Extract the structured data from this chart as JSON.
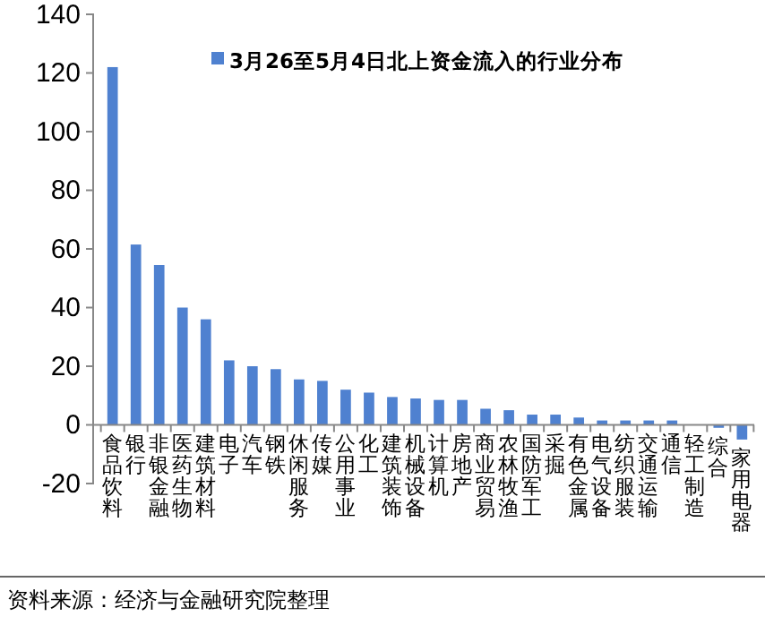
{
  "chart_data": {
    "type": "bar",
    "categories": [
      "食品饮料",
      "银行",
      "非银金融",
      "医药生物",
      "建筑材料",
      "电子",
      "汽车",
      "钢铁",
      "休闲服务",
      "传媒",
      "公用事业",
      "化工",
      "建筑装饰",
      "机械设备",
      "计算机",
      "房地产",
      "商业贸易",
      "农林牧渔",
      "国防军工",
      "采掘",
      "有色金属",
      "电气设备",
      "纺织服装",
      "交通运输",
      "通信",
      "轻工制造",
      "综合",
      "家用电器"
    ],
    "series": [
      {
        "name": "3月26至5月4日北上资金流入的行业分布",
        "color": "#4f81d0",
        "values": [
          122,
          61.5,
          54.5,
          40,
          36,
          22,
          20,
          19,
          15.5,
          15,
          12,
          11,
          9.5,
          9,
          8.5,
          8.5,
          5.5,
          5,
          3.5,
          3.5,
          2.5,
          1.5,
          1.5,
          1.5,
          1.5,
          0,
          -1,
          -5
        ]
      }
    ],
    "ylim": [
      -20,
      140
    ],
    "yticks": [
      -20,
      0,
      20,
      40,
      60,
      80,
      100,
      120,
      140
    ],
    "grid": false,
    "legend": "top right",
    "annotations": [
      "资料来源：经济与金融研究院整理"
    ]
  }
}
